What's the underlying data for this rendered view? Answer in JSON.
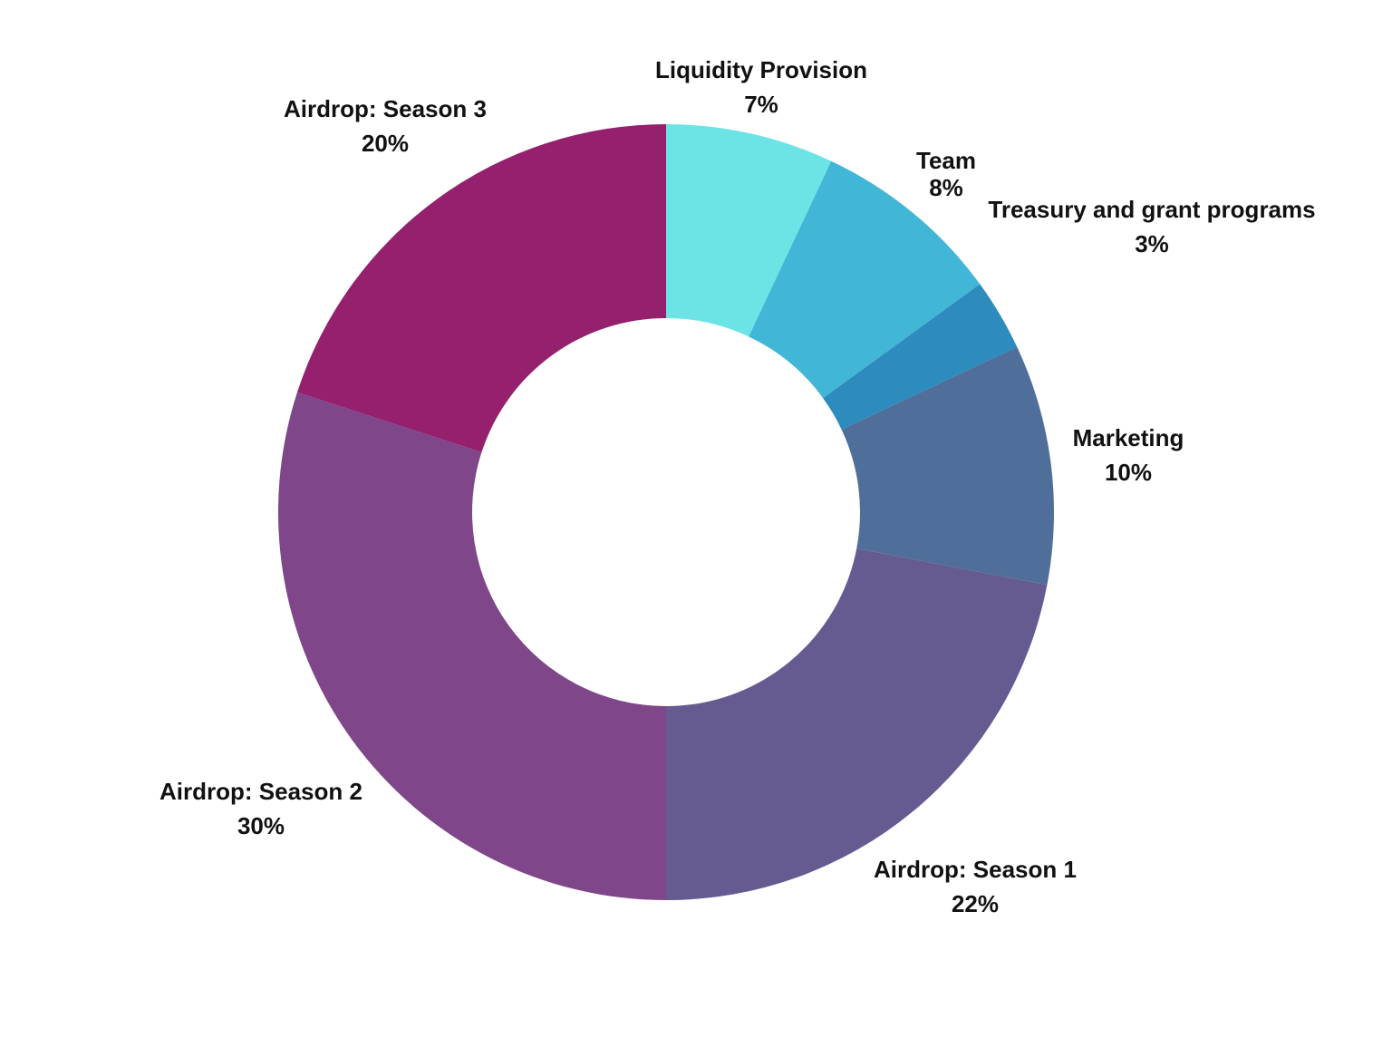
{
  "chart_data": {
    "type": "pie",
    "donut": true,
    "slices": [
      {
        "label": "Liquidity Provision",
        "value": 7,
        "value_label": "7%",
        "color": "#6ce4e6"
      },
      {
        "label": "Team",
        "value": 8,
        "value_label": "8%",
        "color": "#42b6d6"
      },
      {
        "label": "Treasury and grant programs",
        "value": 3,
        "value_label": "3%",
        "color": "#2d8bbd"
      },
      {
        "label": "Marketing",
        "value": 10,
        "value_label": "10%",
        "color": "#4f6e99"
      },
      {
        "label": "Airdrop: Season 1",
        "value": 22,
        "value_label": "22%",
        "color": "#665b91"
      },
      {
        "label": "Airdrop: Season 2",
        "value": 30,
        "value_label": "30%",
        "color": "#7f4789"
      },
      {
        "label": "Airdrop: Season 3",
        "value": 20,
        "value_label": "20%",
        "color": "#94206e"
      }
    ]
  }
}
